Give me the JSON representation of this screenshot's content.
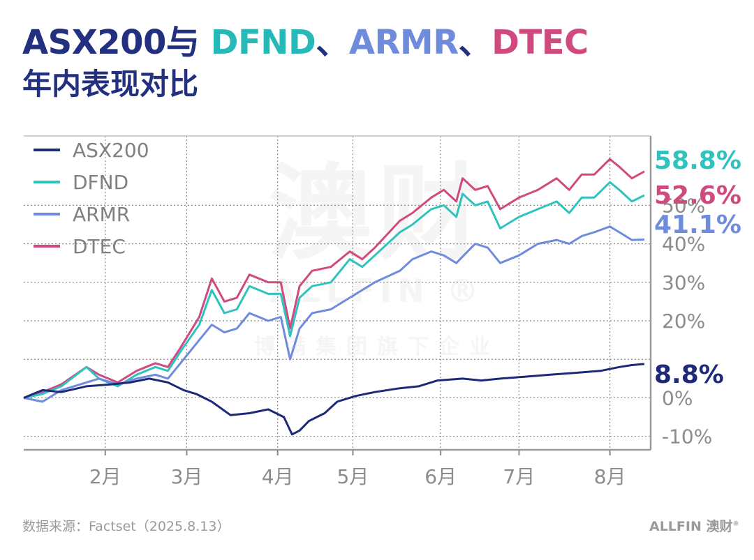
{
  "title": {
    "part1": "ASX200与 ",
    "dfnd": "DFND",
    "sep1": "、",
    "armr": "ARMR",
    "sep2": "、",
    "dtec": "DTEC"
  },
  "subtitle": "年内表现对比",
  "source": "数据来源：Factset（2025.8.13）",
  "logo": {
    "latin": "ALLFIN",
    "cn": "澳财",
    "mark": "®"
  },
  "watermark": {
    "big": "澳财",
    "mid": "ALLFIN ®",
    "small": "博满集团旗下企业"
  },
  "chart_data": {
    "type": "line",
    "x_ticks": [
      {
        "label": "2月",
        "t": 0.13
      },
      {
        "label": "3月",
        "t": 0.26
      },
      {
        "label": "4月",
        "t": 0.405
      },
      {
        "label": "5月",
        "t": 0.525
      },
      {
        "label": "6月",
        "t": 0.665
      },
      {
        "label": "7月",
        "t": 0.79
      },
      {
        "label": "8月",
        "t": 0.935
      }
    ],
    "y_ticks": [
      {
        "label": "-10%",
        "v": -10
      },
      {
        "label": "0%",
        "v": 0
      },
      {
        "label": "10%",
        "v": 10
      },
      {
        "label": "20%",
        "v": 20
      },
      {
        "label": "30%",
        "v": 30
      },
      {
        "label": "40%",
        "v": 40
      },
      {
        "label": "50%",
        "v": 50
      }
    ],
    "ylim": [
      -13.5,
      68
    ],
    "grid": true,
    "legend": "top-left",
    "series": [
      {
        "name": "ASX200",
        "color": "#1e2a78",
        "final_label": "8.8%",
        "values": [
          [
            0,
            0
          ],
          [
            0.03,
            2
          ],
          [
            0.06,
            1.5
          ],
          [
            0.1,
            3
          ],
          [
            0.14,
            3.5
          ],
          [
            0.17,
            4
          ],
          [
            0.2,
            5
          ],
          [
            0.23,
            4
          ],
          [
            0.255,
            2
          ],
          [
            0.275,
            1
          ],
          [
            0.3,
            -1
          ],
          [
            0.33,
            -4.5
          ],
          [
            0.36,
            -4
          ],
          [
            0.39,
            -3
          ],
          [
            0.415,
            -5
          ],
          [
            0.428,
            -9.5
          ],
          [
            0.44,
            -8.5
          ],
          [
            0.455,
            -6
          ],
          [
            0.48,
            -4
          ],
          [
            0.5,
            -1
          ],
          [
            0.53,
            0.5
          ],
          [
            0.56,
            1.5
          ],
          [
            0.6,
            2.5
          ],
          [
            0.63,
            3
          ],
          [
            0.66,
            4.5
          ],
          [
            0.7,
            5
          ],
          [
            0.73,
            4.5
          ],
          [
            0.76,
            5
          ],
          [
            0.8,
            5.5
          ],
          [
            0.84,
            6
          ],
          [
            0.88,
            6.5
          ],
          [
            0.92,
            7
          ],
          [
            0.95,
            8
          ],
          [
            0.97,
            8.5
          ],
          [
            0.99,
            8.8
          ]
        ]
      },
      {
        "name": "DFND",
        "color": "#30c2bf",
        "final_label": "52.6%",
        "values": [
          [
            0,
            0
          ],
          [
            0.03,
            1
          ],
          [
            0.06,
            3
          ],
          [
            0.1,
            8
          ],
          [
            0.12,
            5
          ],
          [
            0.15,
            3
          ],
          [
            0.18,
            6
          ],
          [
            0.21,
            8
          ],
          [
            0.23,
            7
          ],
          [
            0.25,
            12
          ],
          [
            0.28,
            19
          ],
          [
            0.3,
            28
          ],
          [
            0.32,
            22
          ],
          [
            0.34,
            23
          ],
          [
            0.36,
            29
          ],
          [
            0.39,
            27
          ],
          [
            0.41,
            27
          ],
          [
            0.425,
            16
          ],
          [
            0.44,
            26
          ],
          [
            0.46,
            29
          ],
          [
            0.49,
            30
          ],
          [
            0.52,
            36
          ],
          [
            0.54,
            34
          ],
          [
            0.56,
            37
          ],
          [
            0.6,
            43
          ],
          [
            0.62,
            45
          ],
          [
            0.65,
            49
          ],
          [
            0.67,
            50
          ],
          [
            0.69,
            47
          ],
          [
            0.7,
            53
          ],
          [
            0.72,
            50
          ],
          [
            0.74,
            51
          ],
          [
            0.76,
            44
          ],
          [
            0.79,
            47
          ],
          [
            0.82,
            49
          ],
          [
            0.85,
            51
          ],
          [
            0.87,
            48
          ],
          [
            0.89,
            52
          ],
          [
            0.91,
            52
          ],
          [
            0.935,
            56
          ],
          [
            0.95,
            54
          ],
          [
            0.97,
            51
          ],
          [
            0.99,
            52.6
          ]
        ]
      },
      {
        "name": "ARMR",
        "color": "#6f8cdc",
        "final_label": "41.1%",
        "values": [
          [
            0,
            0
          ],
          [
            0.03,
            -1
          ],
          [
            0.06,
            2
          ],
          [
            0.1,
            4
          ],
          [
            0.12,
            5
          ],
          [
            0.15,
            3.5
          ],
          [
            0.18,
            5
          ],
          [
            0.21,
            6
          ],
          [
            0.23,
            5
          ],
          [
            0.25,
            9
          ],
          [
            0.28,
            15
          ],
          [
            0.3,
            19
          ],
          [
            0.32,
            17
          ],
          [
            0.34,
            18
          ],
          [
            0.36,
            22
          ],
          [
            0.39,
            20
          ],
          [
            0.41,
            21
          ],
          [
            0.425,
            10
          ],
          [
            0.44,
            18
          ],
          [
            0.46,
            22
          ],
          [
            0.49,
            23
          ],
          [
            0.52,
            26
          ],
          [
            0.54,
            28
          ],
          [
            0.56,
            30
          ],
          [
            0.6,
            33
          ],
          [
            0.62,
            36
          ],
          [
            0.65,
            38
          ],
          [
            0.67,
            37
          ],
          [
            0.69,
            35
          ],
          [
            0.72,
            40
          ],
          [
            0.74,
            39
          ],
          [
            0.76,
            35
          ],
          [
            0.79,
            37
          ],
          [
            0.82,
            40
          ],
          [
            0.85,
            41
          ],
          [
            0.87,
            40
          ],
          [
            0.89,
            42
          ],
          [
            0.91,
            43
          ],
          [
            0.935,
            44.5
          ],
          [
            0.95,
            43
          ],
          [
            0.97,
            41
          ],
          [
            0.99,
            41.1
          ]
        ]
      },
      {
        "name": "DTEC",
        "color": "#cf4a7e",
        "final_label": "58.8%",
        "values": [
          [
            0,
            0
          ],
          [
            0.03,
            1.5
          ],
          [
            0.06,
            3.5
          ],
          [
            0.1,
            8
          ],
          [
            0.12,
            6
          ],
          [
            0.15,
            4
          ],
          [
            0.18,
            7
          ],
          [
            0.21,
            9
          ],
          [
            0.23,
            8
          ],
          [
            0.25,
            13
          ],
          [
            0.28,
            21
          ],
          [
            0.3,
            31
          ],
          [
            0.32,
            25
          ],
          [
            0.34,
            26
          ],
          [
            0.36,
            32
          ],
          [
            0.39,
            30
          ],
          [
            0.41,
            30
          ],
          [
            0.425,
            18
          ],
          [
            0.44,
            29
          ],
          [
            0.46,
            33
          ],
          [
            0.49,
            34
          ],
          [
            0.52,
            38
          ],
          [
            0.54,
            36
          ],
          [
            0.56,
            39
          ],
          [
            0.6,
            46
          ],
          [
            0.62,
            48
          ],
          [
            0.65,
            52
          ],
          [
            0.67,
            54
          ],
          [
            0.69,
            51
          ],
          [
            0.7,
            57
          ],
          [
            0.72,
            54
          ],
          [
            0.74,
            55
          ],
          [
            0.76,
            49
          ],
          [
            0.79,
            52
          ],
          [
            0.82,
            54
          ],
          [
            0.85,
            57
          ],
          [
            0.87,
            54
          ],
          [
            0.89,
            58
          ],
          [
            0.91,
            58
          ],
          [
            0.935,
            62
          ],
          [
            0.95,
            60
          ],
          [
            0.97,
            57
          ],
          [
            0.99,
            58.8
          ]
        ]
      }
    ]
  }
}
